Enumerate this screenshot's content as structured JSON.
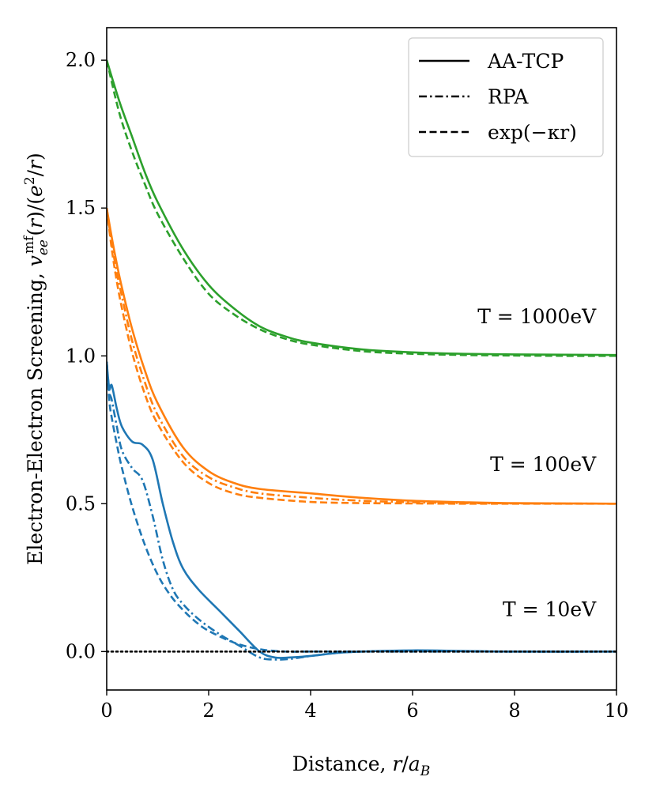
{
  "chart_data": {
    "type": "line",
    "xlabel": "Distance, r/a_B",
    "ylabel": "Electron-Electron Screening, v_ee^mf(r)/(e²/r)",
    "xlim": [
      0,
      10
    ],
    "ylim": [
      -0.13,
      2.11
    ],
    "x_ticks": [
      "0",
      "2",
      "4",
      "6",
      "8",
      "10"
    ],
    "y_ticks": [
      "0.0",
      "0.5",
      "1.0",
      "1.5",
      "2.0"
    ],
    "grid": false,
    "legend_position": "top-right",
    "legend": [
      {
        "label": "AA-TCP",
        "style": "solid"
      },
      {
        "label": "RPA",
        "style": "dashdot"
      },
      {
        "label": "exp(−κr)",
        "style": "dashed"
      }
    ],
    "annotations": [
      {
        "text": "T = 1000eV",
        "x": 9.6,
        "y": 1.11
      },
      {
        "text": "T = 100eV",
        "x": 9.6,
        "y": 0.61
      },
      {
        "text": "T = 10eV",
        "x": 9.6,
        "y": 0.12
      }
    ],
    "colors": {
      "T10": "#1f77b4",
      "T100": "#ff7f0e",
      "T1000": "#2ca02c",
      "zero_line": "#000000"
    },
    "series": [
      {
        "name": "",
        "group": "T = 1000eV",
        "style": "solid",
        "color": "#2ca02c",
        "x": [
          0,
          0.25,
          0.5,
          0.75,
          1.0,
          1.5,
          2.0,
          2.5,
          3.0,
          3.5,
          4.0,
          5.0,
          6.0,
          7.0,
          8.0,
          9.0,
          10.0
        ],
        "y": [
          2.0,
          1.86,
          1.74,
          1.62,
          1.52,
          1.36,
          1.24,
          1.16,
          1.1,
          1.066,
          1.045,
          1.022,
          1.012,
          1.007,
          1.005,
          1.004,
          1.003
        ]
      },
      {
        "name": "",
        "group": "T = 1000eV",
        "style": "dashed",
        "color": "#2ca02c",
        "x": [
          0,
          0.25,
          0.5,
          0.75,
          1.0,
          1.5,
          2.0,
          2.5,
          3.0,
          3.5,
          4.0,
          5.0,
          6.0,
          7.0,
          8.0,
          9.0,
          10.0
        ],
        "y": [
          2.0,
          1.82,
          1.69,
          1.58,
          1.48,
          1.33,
          1.21,
          1.14,
          1.09,
          1.058,
          1.038,
          1.016,
          1.007,
          1.003,
          1.001,
          1.0,
          1.0
        ]
      },
      {
        "name": "",
        "group": "T = 100eV",
        "style": "solid",
        "color": "#ff7f0e",
        "x": [
          0,
          0.1,
          0.2,
          0.3,
          0.5,
          0.75,
          1.0,
          1.5,
          2.0,
          2.5,
          3.0,
          4.0,
          5.0,
          6.0,
          7.0,
          8.0,
          10.0
        ],
        "y": [
          1.5,
          1.4,
          1.31,
          1.23,
          1.09,
          0.95,
          0.84,
          0.69,
          0.61,
          0.57,
          0.55,
          0.535,
          0.52,
          0.51,
          0.505,
          0.502,
          0.5
        ]
      },
      {
        "name": "",
        "group": "T = 100eV",
        "style": "dashdot",
        "color": "#ff7f0e",
        "x": [
          0,
          0.1,
          0.2,
          0.3,
          0.5,
          0.75,
          1.0,
          1.5,
          2.0,
          2.5,
          3.0,
          4.0,
          5.0,
          6.0,
          7.0,
          8.0,
          10.0
        ],
        "y": [
          1.5,
          1.38,
          1.28,
          1.2,
          1.05,
          0.91,
          0.8,
          0.66,
          0.59,
          0.555,
          0.535,
          0.52,
          0.51,
          0.505,
          0.502,
          0.501,
          0.5
        ]
      },
      {
        "name": "",
        "group": "T = 100eV",
        "style": "dashed",
        "color": "#ff7f0e",
        "x": [
          0,
          0.1,
          0.2,
          0.3,
          0.5,
          0.75,
          1.0,
          1.5,
          2.0,
          2.5,
          3.0,
          4.0,
          5.0,
          6.0,
          7.0,
          8.0,
          10.0
        ],
        "y": [
          1.5,
          1.36,
          1.25,
          1.16,
          1.01,
          0.87,
          0.77,
          0.64,
          0.57,
          0.535,
          0.52,
          0.506,
          0.502,
          0.501,
          0.5,
          0.5,
          0.5
        ]
      },
      {
        "name": "",
        "group": "T = 10eV",
        "style": "solid",
        "color": "#1f77b4",
        "x": [
          0,
          0.05,
          0.1,
          0.2,
          0.3,
          0.5,
          0.7,
          0.9,
          1.1,
          1.3,
          1.5,
          1.8,
          2.2,
          2.6,
          3.0,
          3.3,
          3.6,
          4.0,
          4.5,
          5.0,
          6.0,
          7.0,
          8.0,
          10.0
        ],
        "y": [
          0.98,
          0.89,
          0.9,
          0.82,
          0.76,
          0.71,
          0.7,
          0.65,
          0.5,
          0.37,
          0.28,
          0.21,
          0.14,
          0.07,
          0.0,
          -0.02,
          -0.02,
          -0.015,
          -0.005,
          0.0,
          0.004,
          0.002,
          0.0,
          0.0
        ]
      },
      {
        "name": "",
        "group": "T = 10eV",
        "style": "dashdot",
        "color": "#1f77b4",
        "x": [
          0,
          0.05,
          0.1,
          0.2,
          0.3,
          0.5,
          0.7,
          0.9,
          1.1,
          1.3,
          1.5,
          1.8,
          2.2,
          2.6,
          3.0,
          3.3,
          3.6,
          4.0,
          4.5,
          5.0,
          6.0,
          7.0,
          8.0,
          10.0
        ],
        "y": [
          0.98,
          0.88,
          0.85,
          0.76,
          0.68,
          0.62,
          0.58,
          0.46,
          0.31,
          0.21,
          0.16,
          0.11,
          0.06,
          0.02,
          -0.02,
          -0.027,
          -0.025,
          -0.015,
          -0.005,
          0.0,
          0.002,
          0.001,
          0.0,
          0.0
        ]
      },
      {
        "name": "",
        "group": "T = 10eV",
        "style": "dashed",
        "color": "#1f77b4",
        "x": [
          0,
          0.05,
          0.1,
          0.2,
          0.3,
          0.5,
          0.75,
          1.0,
          1.25,
          1.5,
          1.75,
          2.0,
          2.5,
          3.0,
          3.5,
          4.0,
          5.0,
          6.0,
          8.0,
          10.0
        ],
        "y": [
          0.98,
          0.85,
          0.79,
          0.7,
          0.62,
          0.49,
          0.36,
          0.26,
          0.19,
          0.14,
          0.1,
          0.07,
          0.03,
          0.008,
          0.0,
          0.0,
          0.0,
          0.0,
          0.0,
          0.0
        ]
      },
      {
        "name": "",
        "group": "zero",
        "style": "dotted",
        "color": "#000000",
        "x": [
          0,
          10
        ],
        "y": [
          0,
          0
        ]
      }
    ]
  }
}
